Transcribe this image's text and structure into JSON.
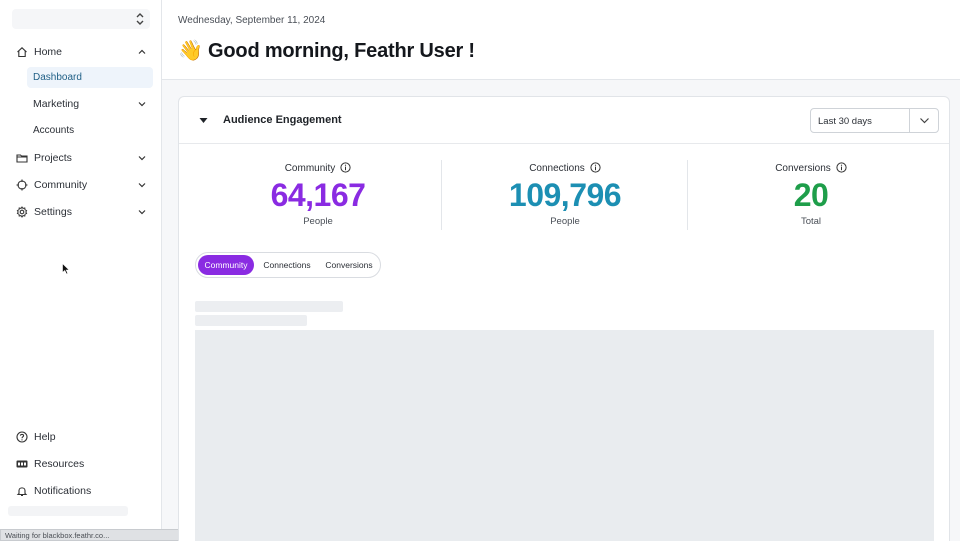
{
  "sidebar": {
    "home": {
      "label": "Home",
      "icon": "home-icon",
      "children": {
        "dashboard": "Dashboard",
        "marketing": "Marketing",
        "accounts": "Accounts"
      }
    },
    "projects": {
      "label": "Projects",
      "icon": "folder-icon"
    },
    "community": {
      "label": "Community",
      "icon": "crosshair-icon"
    },
    "settings": {
      "label": "Settings",
      "icon": "gear-icon"
    },
    "help": {
      "label": "Help",
      "icon": "question-icon"
    },
    "resources": {
      "label": "Resources",
      "icon": "pro-badge-icon"
    },
    "notifications": {
      "label": "Notifications",
      "icon": "bell-icon"
    }
  },
  "status_bar": {
    "text": "Waiting for blackbox.feathr.co..."
  },
  "header": {
    "date": "Wednesday, September 11, 2024",
    "greeting": "👋 Good morning,  Feathr User  !"
  },
  "card": {
    "title": "Audience Engagement",
    "date_range": "Last 30 days",
    "stats": [
      {
        "label": "Community",
        "value": "64,167",
        "unit": "People",
        "color": "#8a2be2"
      },
      {
        "label": "Connections",
        "value": "109,796",
        "unit": "People",
        "color": "#1c8fb3"
      },
      {
        "label": "Conversions",
        "value": "20",
        "unit": "Total",
        "color": "#1e9e4a"
      }
    ],
    "tabs": [
      "Community",
      "Connections",
      "Conversions"
    ]
  },
  "colors": {
    "accent": "#8a2be2",
    "active_nav_bg": "#eef4fb"
  }
}
